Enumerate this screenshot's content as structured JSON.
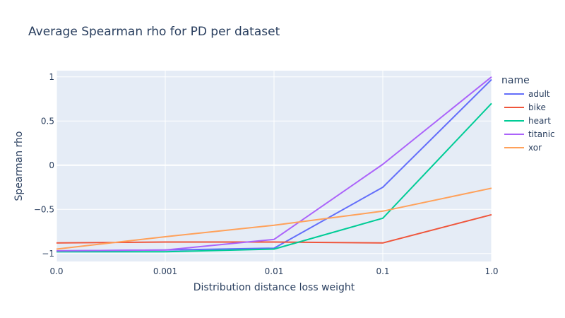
{
  "chart_data": {
    "type": "line",
    "title": "Average Spearman rho for PD per dataset",
    "xlabel": "Distribution distance loss weight",
    "ylabel": "Spearman rho",
    "categories": [
      "0.0",
      "0.001",
      "0.01",
      "0.1",
      "1.0"
    ],
    "yticks": [
      "1",
      "0.5",
      "0",
      "−0.5",
      "−1"
    ],
    "ytick_values": [
      1,
      0.5,
      0,
      -0.5,
      -1
    ],
    "ylim": [
      -1.09,
      1.07
    ],
    "grid": true,
    "legend_title": "name",
    "legend_position": "right",
    "background_color": "#e5ecf6",
    "series": [
      {
        "name": "adult",
        "color": "#636efa",
        "values": [
          -0.97,
          -0.96,
          -0.94,
          -0.25,
          0.97
        ]
      },
      {
        "name": "bike",
        "color": "#ef553b",
        "values": [
          -0.88,
          -0.87,
          -0.87,
          -0.88,
          -0.56
        ]
      },
      {
        "name": "heart",
        "color": "#00cc96",
        "values": [
          -0.98,
          -0.98,
          -0.95,
          -0.6,
          0.7
        ]
      },
      {
        "name": "titanic",
        "color": "#ab63fa",
        "values": [
          -0.97,
          -0.96,
          -0.84,
          0.01,
          1.0
        ]
      },
      {
        "name": "xor",
        "color": "#ffa15a",
        "values": [
          -0.95,
          -0.81,
          -0.68,
          -0.52,
          -0.26
        ]
      }
    ]
  }
}
